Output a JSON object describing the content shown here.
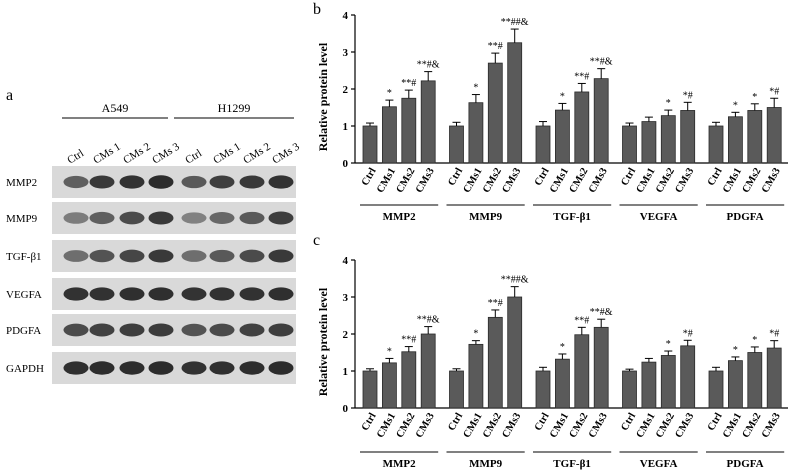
{
  "western_blot": {
    "panel_label": "a",
    "cell_lines": [
      "A549",
      "H1299"
    ],
    "lanes": [
      "Ctrl",
      "CMs 1",
      "CMs 2",
      "CMs 3",
      "Ctrl",
      "CMs 1",
      "CMs 2",
      "CMs 3"
    ],
    "proteins": [
      "MMP2",
      "MMP9",
      "TGF-β1",
      "VEGFA",
      "PDGFA",
      "GAPDH"
    ]
  },
  "chart_data": [
    {
      "panel_label": "b",
      "type": "bar",
      "ylabel": "Relative protein level",
      "ylim": [
        0,
        4
      ],
      "yticks": [
        0,
        1,
        2,
        3,
        4
      ],
      "bar_color": "#5a5a5a",
      "groups": [
        {
          "name": "MMP2",
          "categories": [
            "Ctrl",
            "CMs1",
            "CMs2",
            "CMs3"
          ],
          "values": [
            1.0,
            1.52,
            1.75,
            2.22
          ],
          "errors": [
            0.08,
            0.18,
            0.22,
            0.25
          ],
          "sig": [
            "",
            "*",
            "**#",
            "**#&"
          ]
        },
        {
          "name": "MMP9",
          "categories": [
            "Ctrl",
            "CMs1",
            "CMs2",
            "CMs3"
          ],
          "values": [
            1.0,
            1.63,
            2.7,
            3.25
          ],
          "errors": [
            0.1,
            0.22,
            0.27,
            0.37
          ],
          "sig": [
            "",
            "*",
            "**#",
            "**##&"
          ]
        },
        {
          "name": "TGF-β1",
          "categories": [
            "Ctrl",
            "CMs1",
            "CMs2",
            "CMs3"
          ],
          "values": [
            1.0,
            1.43,
            1.92,
            2.28
          ],
          "errors": [
            0.12,
            0.18,
            0.23,
            0.27
          ],
          "sig": [
            "",
            "*",
            "**#",
            "**#&"
          ]
        },
        {
          "name": "VEGFA",
          "categories": [
            "Ctrl",
            "CMs1",
            "CMs2",
            "CMs3"
          ],
          "values": [
            1.0,
            1.12,
            1.28,
            1.42
          ],
          "errors": [
            0.08,
            0.12,
            0.15,
            0.22
          ],
          "sig": [
            "",
            "",
            "*",
            "*#"
          ]
        },
        {
          "name": "PDGFA",
          "categories": [
            "Ctrl",
            "CMs1",
            "CMs2",
            "CMs3"
          ],
          "values": [
            1.0,
            1.25,
            1.42,
            1.5
          ],
          "errors": [
            0.1,
            0.12,
            0.18,
            0.25
          ],
          "sig": [
            "",
            "*",
            "*",
            "*#"
          ]
        }
      ]
    },
    {
      "panel_label": "c",
      "type": "bar",
      "ylabel": "Relative protein level",
      "ylim": [
        0,
        4
      ],
      "yticks": [
        0,
        1,
        2,
        3,
        4
      ],
      "bar_color": "#5a5a5a",
      "groups": [
        {
          "name": "MMP2",
          "categories": [
            "Ctrl",
            "CMs1",
            "CMs2",
            "CMs3"
          ],
          "values": [
            1.0,
            1.22,
            1.52,
            2.0
          ],
          "errors": [
            0.06,
            0.12,
            0.14,
            0.2
          ],
          "sig": [
            "",
            "*",
            "**#",
            "**#&"
          ]
        },
        {
          "name": "MMP9",
          "categories": [
            "Ctrl",
            "CMs1",
            "CMs2",
            "CMs3"
          ],
          "values": [
            1.0,
            1.72,
            2.45,
            3.0
          ],
          "errors": [
            0.06,
            0.1,
            0.2,
            0.28
          ],
          "sig": [
            "",
            "*",
            "**#",
            "**##&"
          ]
        },
        {
          "name": "TGF-β1",
          "categories": [
            "Ctrl",
            "CMs1",
            "CMs2",
            "CMs3"
          ],
          "values": [
            1.0,
            1.32,
            1.98,
            2.18
          ],
          "errors": [
            0.1,
            0.14,
            0.2,
            0.22
          ],
          "sig": [
            "",
            "*",
            "**#",
            "**#&"
          ]
        },
        {
          "name": "VEGFA",
          "categories": [
            "Ctrl",
            "CMs1",
            "CMs2",
            "CMs3"
          ],
          "values": [
            1.0,
            1.24,
            1.42,
            1.68
          ],
          "errors": [
            0.05,
            0.1,
            0.12,
            0.15
          ],
          "sig": [
            "",
            "",
            "*",
            "*#"
          ]
        },
        {
          "name": "PDGFA",
          "categories": [
            "Ctrl",
            "CMs1",
            "CMs2",
            "CMs3"
          ],
          "values": [
            1.0,
            1.28,
            1.5,
            1.62
          ],
          "errors": [
            0.1,
            0.1,
            0.15,
            0.2
          ],
          "sig": [
            "",
            "*",
            "*",
            "*#"
          ]
        }
      ]
    }
  ]
}
